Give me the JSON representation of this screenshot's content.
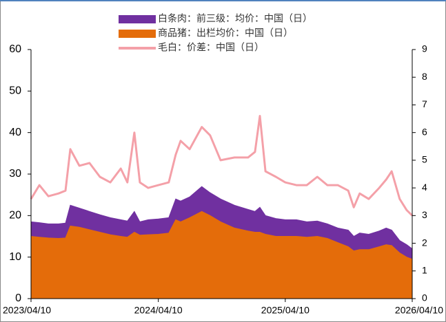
{
  "chart_data": {
    "type": "area",
    "x": [
      "2023/04/10",
      "2023/05/04",
      "2023/05/30",
      "2023/06/28",
      "2023/07/18",
      "2023/08/01",
      "2023/08/27",
      "2023/09/25",
      "2023/10/25",
      "2023/11/24",
      "2023/12/24",
      "2024/01/12",
      "2024/02/01",
      "2024/02/17",
      "2024/03/12",
      "2024/04/10",
      "2024/05/10",
      "2024/05/30",
      "2024/06/13",
      "2024/07/09",
      "2024/08/13",
      "2024/09/06",
      "2024/10/06",
      "2024/11/15",
      "2024/12/24",
      "2025/01/13",
      "2025/01/27",
      "2025/02/12",
      "2025/03/14",
      "2025/04/10",
      "2025/05/12",
      "2025/06/11",
      "2025/07/11",
      "2025/08/09",
      "2025/09/08",
      "2025/10/08",
      "2025/10/24",
      "2025/11/10",
      "2025/12/06",
      "2026/01/05",
      "2026/01/25",
      "2026/02/10",
      "2026/03/05",
      "2026/03/25",
      "2026/04/10"
    ],
    "series": [
      {
        "name": "白条肉：前三级：均价：中国（日）",
        "color": "#7030a0",
        "kind": "area",
        "values": [
          18.5,
          18.3,
          18,
          18,
          18.2,
          22.5,
          21.8,
          21,
          20.2,
          19.5,
          19,
          18.7,
          21,
          18.5,
          19,
          19.2,
          19.5,
          24,
          23.5,
          24.5,
          27,
          25.5,
          24,
          22.5,
          21.5,
          21,
          22,
          20,
          19.3,
          19,
          19,
          18.5,
          18.7,
          18,
          17,
          16.5,
          15,
          15.8,
          15.5,
          16.3,
          17,
          16.5,
          14,
          13,
          12
        ]
      },
      {
        "name": "商品猪：出栏均价：中国（日）",
        "color": "#e46c0a",
        "kind": "area",
        "values": [
          15,
          14.8,
          14.6,
          14.5,
          14.6,
          17.5,
          17.2,
          16.6,
          16,
          15.4,
          15,
          14.8,
          16,
          15.3,
          15.4,
          15.5,
          15.8,
          19,
          18.5,
          19.5,
          21,
          20,
          18.5,
          17,
          16.3,
          16,
          16,
          15.5,
          15,
          15,
          15,
          14.8,
          15,
          14.5,
          13.5,
          12.5,
          11.5,
          11.8,
          11.8,
          12.5,
          13,
          12.8,
          11,
          10,
          9.5
        ]
      },
      {
        "name": "毛白：价差：中国（日）",
        "color": "#f4a0a8",
        "kind": "line",
        "axis": "y2",
        "values": [
          3.6,
          4.1,
          3.7,
          3.8,
          3.9,
          5.4,
          4.8,
          4.9,
          4.4,
          4.2,
          4.7,
          4.2,
          6.0,
          4.2,
          4.0,
          4.1,
          4.2,
          5.2,
          5.7,
          5.4,
          6.2,
          5.9,
          5.0,
          5.1,
          5.1,
          5.3,
          6.6,
          4.6,
          4.4,
          4.2,
          4.1,
          4.1,
          4.4,
          4.1,
          4.1,
          3.9,
          3.3,
          3.8,
          3.6,
          4.0,
          4.3,
          4.6,
          3.6,
          3.2,
          3.0
        ]
      }
    ],
    "xlim": [
      "2023/04/10",
      "2026/04/10"
    ],
    "xticks": [
      "2023/04/10",
      "2024/04/10",
      "2025/04/10",
      "2026/04/10"
    ],
    "ylim": [
      0,
      60
    ],
    "yticks": [
      0,
      10,
      20,
      30,
      40,
      50,
      60
    ],
    "y2lim": [
      0,
      9
    ],
    "y2ticks": [
      0,
      1,
      2,
      3,
      4,
      5,
      6,
      7,
      8,
      9
    ],
    "legend": "top"
  }
}
